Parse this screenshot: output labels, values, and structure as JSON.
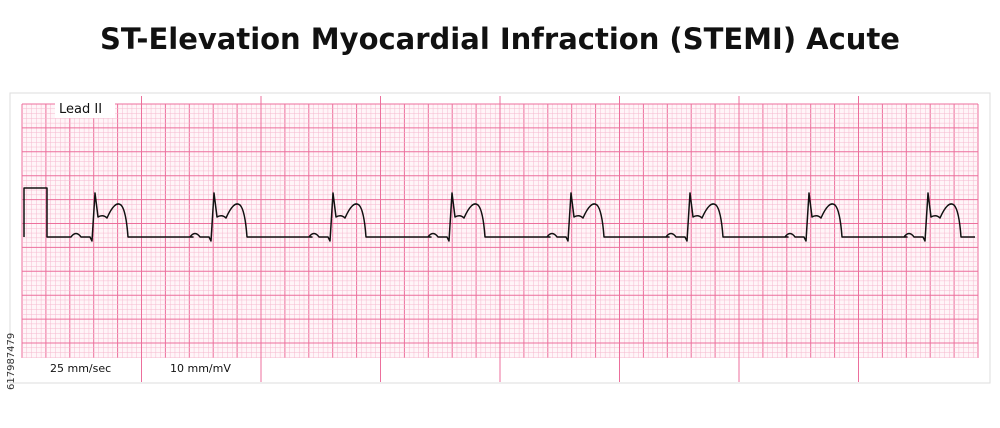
{
  "header": {
    "title": "ST-Elevation Myocardial Infraction (STEMI) Acute"
  },
  "strip": {
    "lead": "Lead II",
    "paper_speed": "25 mm/sec",
    "gain": "10 mm/mV"
  },
  "watermark_id": "617987479"
}
